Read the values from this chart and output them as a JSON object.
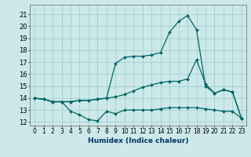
{
  "xlabel": "Humidex (Indice chaleur)",
  "background_color": "#cce8e8",
  "grid_color": "#99cccc",
  "line_color": "#006666",
  "xlim": [
    -0.5,
    23.5
  ],
  "ylim": [
    11.7,
    21.8
  ],
  "xticks": [
    0,
    1,
    2,
    3,
    4,
    5,
    6,
    7,
    8,
    9,
    10,
    11,
    12,
    13,
    14,
    15,
    16,
    17,
    18,
    19,
    20,
    21,
    22,
    23
  ],
  "yticks": [
    12,
    13,
    14,
    15,
    16,
    17,
    18,
    19,
    20,
    21
  ],
  "line1_x": [
    0,
    1,
    2,
    3,
    4,
    5,
    6,
    7,
    8,
    9,
    10,
    11,
    12,
    13,
    14,
    15,
    16,
    17,
    18,
    19,
    20,
    21,
    22,
    23
  ],
  "line1_y": [
    14.0,
    13.9,
    13.7,
    13.7,
    12.9,
    12.6,
    12.2,
    12.1,
    12.9,
    12.7,
    13.0,
    13.0,
    13.0,
    13.0,
    13.1,
    13.2,
    13.2,
    13.2,
    13.2,
    13.1,
    13.0,
    12.9,
    12.9,
    12.3
  ],
  "line2_x": [
    0,
    1,
    2,
    3,
    4,
    5,
    6,
    7,
    8,
    9,
    10,
    11,
    12,
    13,
    14,
    15,
    16,
    17,
    18,
    19,
    20,
    21,
    22,
    23
  ],
  "line2_y": [
    14.0,
    13.9,
    13.7,
    13.7,
    13.7,
    13.8,
    13.8,
    13.9,
    14.0,
    14.1,
    14.3,
    14.6,
    14.9,
    15.1,
    15.3,
    15.4,
    15.4,
    15.6,
    17.2,
    15.2,
    14.4,
    14.7,
    14.5,
    12.3
  ],
  "line3_x": [
    0,
    1,
    2,
    3,
    4,
    5,
    6,
    7,
    8,
    9,
    10,
    11,
    12,
    13,
    14,
    15,
    16,
    17,
    18,
    19,
    20,
    21,
    22,
    23
  ],
  "line3_y": [
    14.0,
    13.9,
    13.7,
    13.7,
    13.7,
    13.8,
    13.8,
    13.9,
    14.0,
    16.9,
    17.4,
    17.5,
    17.5,
    17.6,
    17.8,
    19.5,
    20.4,
    20.9,
    19.7,
    15.0,
    14.4,
    14.7,
    14.5,
    12.3
  ],
  "tick_fontsize": 5.5,
  "xlabel_fontsize": 6.5
}
